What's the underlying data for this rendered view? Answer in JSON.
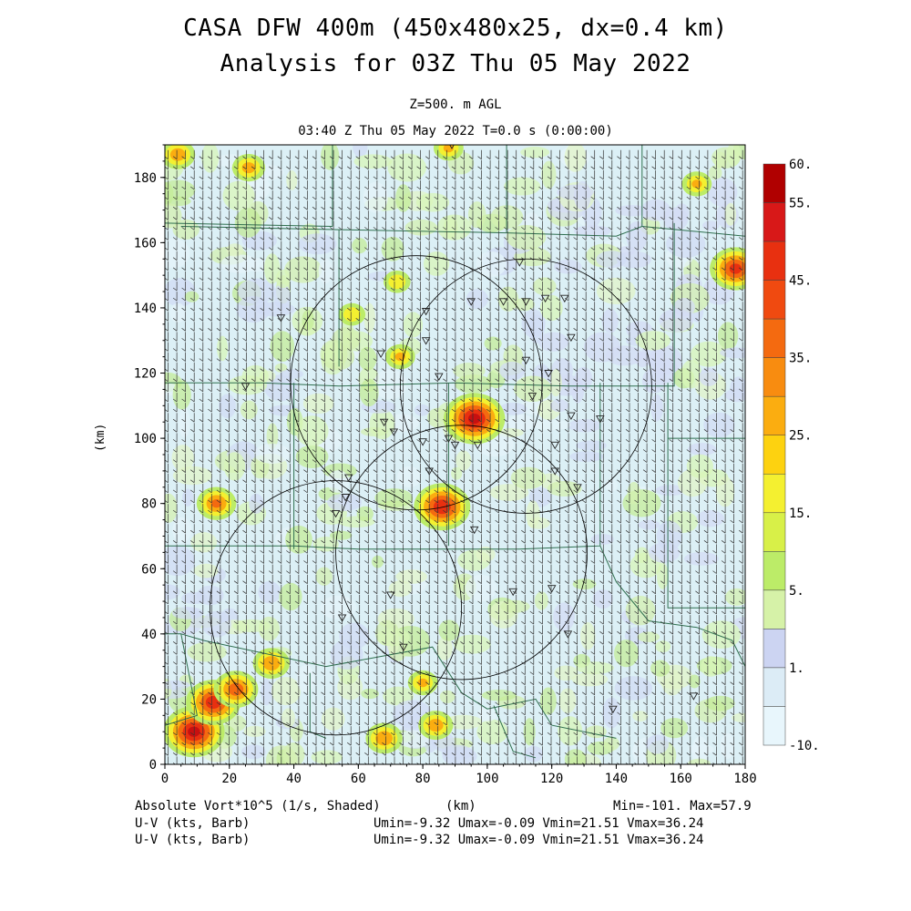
{
  "chart_data": {
    "type": "heatmap",
    "title": "CASA DFW 400m (450x480x25, dx=0.4 km)",
    "subtitle": "Analysis for 03Z Thu 05 May 2022",
    "level": "Z=500. m AGL",
    "valid_time": "03:40 Z Thu 05 May 2022   T=0.0 s (0:00:00)",
    "xlabel": "(km)",
    "ylabel": "(km)",
    "xlim": [
      0,
      180
    ],
    "ylim": [
      0,
      190
    ],
    "x_ticks": [
      "0",
      "20",
      "40",
      "60",
      "80",
      "100",
      "120",
      "140",
      "160",
      "180"
    ],
    "y_ticks": [
      "0",
      "20",
      "40",
      "60",
      "80",
      "100",
      "120",
      "140",
      "160",
      "180"
    ],
    "colorbar": {
      "labels": [
        "60.",
        "55.",
        "45.",
        "35.",
        "25.",
        "15.",
        "5.",
        "1.",
        "-10."
      ],
      "colors": [
        "#b00000",
        "#d81818",
        "#e83010",
        "#f04a10",
        "#f46a10",
        "#f88c10",
        "#fbad10",
        "#fdd210",
        "#f4f030",
        "#d8f048",
        "#bcec68",
        "#d6f2a8",
        "#ccd4f2",
        "#dcecf6",
        "#e8f6fc"
      ]
    },
    "field_label": "Absolute Vort*10^5 (1/s, Shaded)",
    "stats": "Min=-101. Max=57.9",
    "wind_label_1": "U-V (kts, Barb)",
    "wind_stats_1": "Umin=-9.32 Umax=-0.09 Vmin=21.51 Vmax=36.24",
    "wind_label_2": "U-V (kts, Barb)",
    "wind_stats_2": "Umin=-9.32 Umax=-0.09 Vmin=21.51 Vmax=36.24",
    "radar_rings": [
      {
        "cx": 78,
        "cy": 117,
        "r": 39
      },
      {
        "cx": 112,
        "cy": 116,
        "r": 39
      },
      {
        "cx": 53,
        "cy": 48,
        "r": 39
      },
      {
        "cx": 92,
        "cy": 65,
        "r": 39
      }
    ],
    "vorticity_hotspots": [
      {
        "x": 9,
        "y": 10,
        "v": 57
      },
      {
        "x": 15,
        "y": 19,
        "v": 50
      },
      {
        "x": 22,
        "y": 23,
        "v": 40
      },
      {
        "x": 96,
        "y": 106,
        "v": 57
      },
      {
        "x": 86,
        "y": 79,
        "v": 52
      },
      {
        "x": 177,
        "y": 152,
        "v": 47
      },
      {
        "x": 33,
        "y": 31,
        "v": 32
      },
      {
        "x": 16,
        "y": 80,
        "v": 35
      },
      {
        "x": 68,
        "y": 8,
        "v": 32
      },
      {
        "x": 84,
        "y": 12,
        "v": 30
      },
      {
        "x": 73,
        "y": 125,
        "v": 25
      },
      {
        "x": 4,
        "y": 187,
        "v": 30
      },
      {
        "x": 88,
        "y": 189,
        "v": 25
      },
      {
        "x": 26,
        "y": 183,
        "v": 28
      },
      {
        "x": 165,
        "y": 178,
        "v": 25
      },
      {
        "x": 80,
        "y": 25,
        "v": 25
      },
      {
        "x": 72,
        "y": 148,
        "v": 22
      },
      {
        "x": 58,
        "y": 138,
        "v": 22
      }
    ],
    "stations": [
      [
        89,
        190
      ],
      [
        110,
        154
      ],
      [
        118,
        143
      ],
      [
        112,
        142
      ],
      [
        124,
        143
      ],
      [
        126,
        131
      ],
      [
        105,
        142
      ],
      [
        95,
        142
      ],
      [
        81,
        139
      ],
      [
        67,
        126
      ],
      [
        81,
        130
      ],
      [
        85,
        119
      ],
      [
        112,
        124
      ],
      [
        119,
        120
      ],
      [
        114,
        113
      ],
      [
        126,
        107
      ],
      [
        135,
        106
      ],
      [
        68,
        105
      ],
      [
        71,
        102
      ],
      [
        80,
        99
      ],
      [
        88,
        100
      ],
      [
        90,
        98
      ],
      [
        97,
        98
      ],
      [
        121,
        98
      ],
      [
        121,
        90
      ],
      [
        128,
        85
      ],
      [
        82,
        90
      ],
      [
        57,
        88
      ],
      [
        56,
        82
      ],
      [
        53,
        77
      ],
      [
        96,
        72
      ],
      [
        25,
        116
      ],
      [
        36,
        137
      ],
      [
        70,
        52
      ],
      [
        108,
        53
      ],
      [
        120,
        54
      ],
      [
        55,
        45
      ],
      [
        74,
        36
      ],
      [
        125,
        40
      ],
      [
        139,
        17
      ],
      [
        164,
        21
      ]
    ],
    "county_lines": [
      [
        [
          0,
          166
        ],
        [
          52,
          165
        ]
      ],
      [
        [
          52,
          165
        ],
        [
          52,
          190
        ]
      ],
      [
        [
          5,
          165
        ],
        [
          54,
          164
        ],
        [
          54,
          122
        ]
      ],
      [
        [
          54,
          164
        ],
        [
          106,
          163
        ],
        [
          140,
          162
        ],
        [
          148,
          165
        ],
        [
          180,
          162
        ]
      ],
      [
        [
          106,
          163
        ],
        [
          106,
          190
        ]
      ],
      [
        [
          148,
          165
        ],
        [
          148,
          190
        ]
      ],
      [
        [
          0,
          117
        ],
        [
          30,
          117
        ],
        [
          54,
          116
        ],
        [
          90,
          117
        ],
        [
          125,
          116
        ],
        [
          158,
          116
        ],
        [
          158,
          166
        ]
      ],
      [
        [
          40,
          117
        ],
        [
          40,
          66
        ]
      ],
      [
        [
          0,
          67
        ],
        [
          40,
          67
        ],
        [
          60,
          66
        ],
        [
          110,
          66
        ],
        [
          135,
          67
        ],
        [
          135,
          117
        ]
      ],
      [
        [
          156,
          100
        ],
        [
          180,
          100
        ]
      ],
      [
        [
          156,
          117
        ],
        [
          156,
          48
        ],
        [
          180,
          48
        ]
      ],
      [
        [
          88,
          117
        ],
        [
          88,
          67
        ]
      ],
      [
        [
          0,
          40
        ],
        [
          5,
          40
        ],
        [
          10,
          15
        ],
        [
          0,
          12
        ]
      ],
      [
        [
          5,
          40
        ],
        [
          12,
          38
        ],
        [
          50,
          30
        ],
        [
          83,
          36
        ],
        [
          92,
          22
        ]
      ],
      [
        [
          45,
          28
        ],
        [
          45,
          10
        ],
        [
          50,
          8
        ]
      ],
      [
        [
          92,
          22
        ],
        [
          100,
          17
        ],
        [
          115,
          20
        ],
        [
          120,
          12
        ],
        [
          140,
          8
        ]
      ],
      [
        [
          135,
          67
        ],
        [
          140,
          56
        ],
        [
          150,
          44
        ],
        [
          165,
          42
        ],
        [
          176,
          38
        ]
      ],
      [
        [
          176,
          38
        ],
        [
          180,
          30
        ]
      ],
      [
        [
          102,
          18
        ],
        [
          108,
          4
        ],
        [
          115,
          2
        ]
      ]
    ]
  }
}
